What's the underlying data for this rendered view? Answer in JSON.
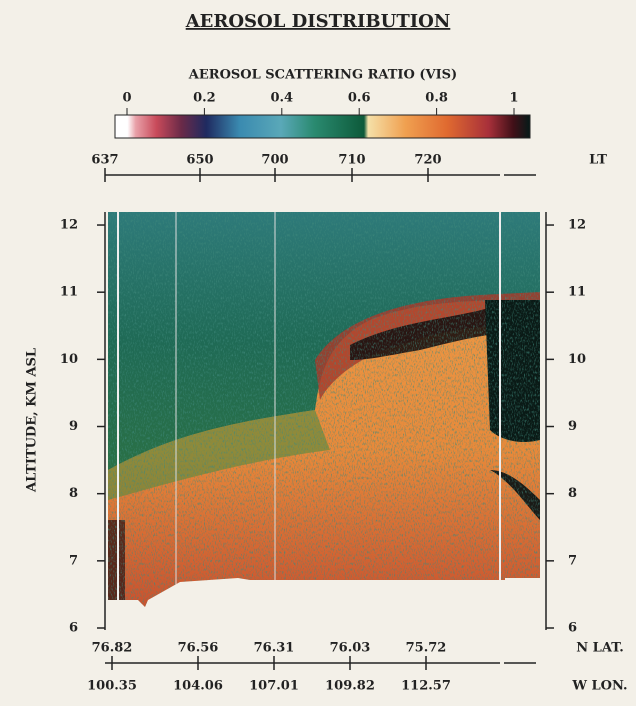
{
  "chart_data": {
    "type": "heatmap",
    "title": "AEROSOL DISTRIBUTION",
    "colorbar": {
      "label": "AEROSOL SCATTERING RATIO (VIS)",
      "lim": [
        0,
        1
      ],
      "ticks": [
        0,
        0.2,
        0.4,
        0.6,
        0.8,
        1
      ]
    },
    "top_axis": {
      "label": "LT",
      "ticks": [
        "637",
        "650",
        "700",
        "710",
        "720"
      ]
    },
    "ylabel": "ALTITUDE, KM ASL",
    "ylim": [
      6,
      12.2
    ],
    "yticks": [
      6,
      7,
      8,
      9,
      10,
      11,
      12
    ],
    "lat_axis": {
      "label": "N LAT.",
      "ticks": [
        "76.82",
        "76.56",
        "76.31",
        "76.03",
        "75.72"
      ]
    },
    "lon_axis": {
      "label": "W LON.",
      "ticks": [
        "100.35",
        "104.06",
        "107.01",
        "109.82",
        "112.57"
      ]
    }
  }
}
